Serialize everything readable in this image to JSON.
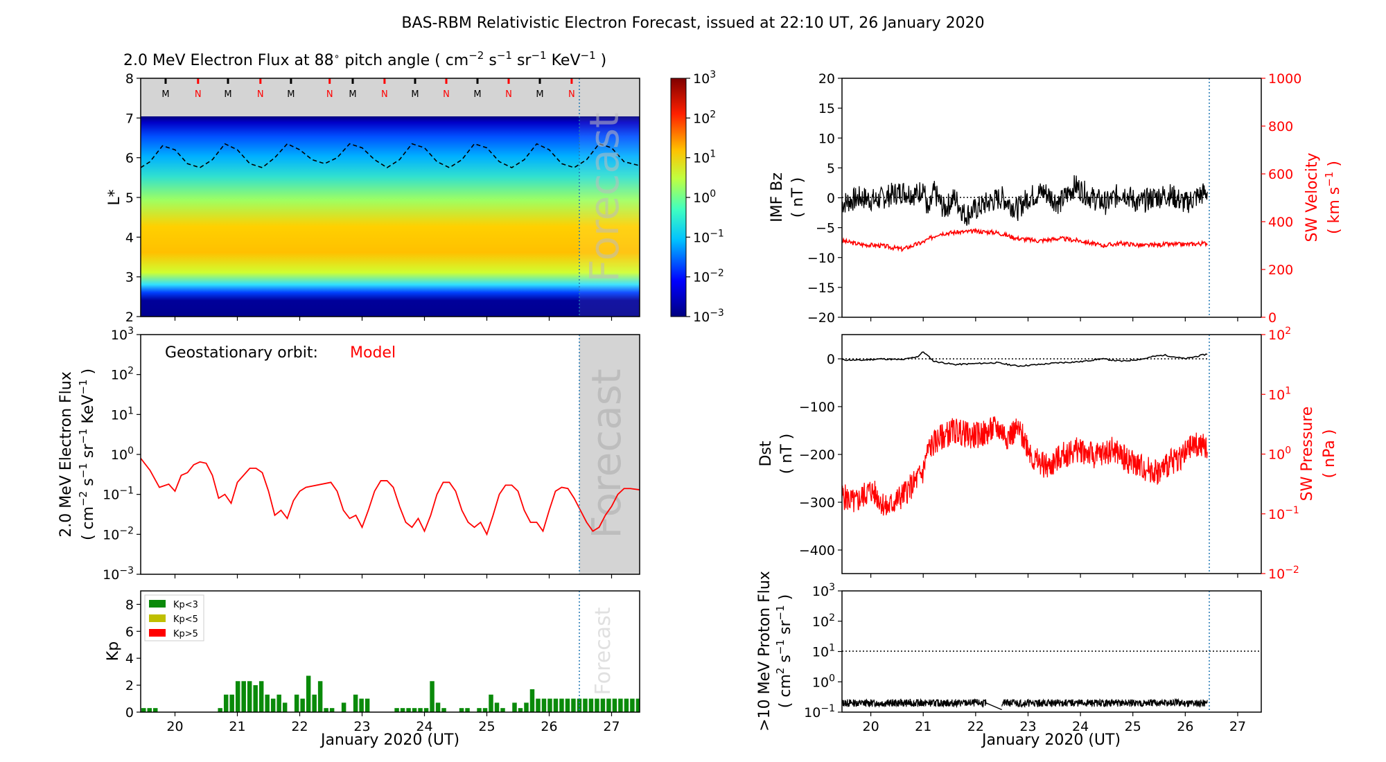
{
  "figure_title": "BAS-RBM Relativistic Electron Forecast, issued at 22:10 UT, 26 January 2020",
  "colors": {
    "red": "#ff0000",
    "green": "#0a8a0a",
    "olive": "#bfbf00",
    "black": "#000000",
    "forecast_line": "#1f77b4",
    "shade": "#d4d4d4"
  },
  "chart_data": [
    {
      "id": "heatmap",
      "type": "heatmap",
      "title": "2.0 MeV Electron Flux at 88$^\\circ$ pitch angle ( cm$^{-2}$ s$^{-1}$ sr$^{-1}$ KeV$^{-1}$ )",
      "title_text": "2.0 MeV Electron Flux at 88",
      "title_units": "pitch angle ( cm",
      "ylabel": "L*",
      "ylim": [
        2,
        8
      ],
      "yticks": [
        "2",
        "3",
        "4",
        "5",
        "6",
        "7",
        "8"
      ],
      "xlim": [
        19.45,
        27.45
      ],
      "colorbar_ticks": [
        "10",
        "10",
        "10",
        "10",
        "10",
        "10",
        "10"
      ],
      "colorbar_exps": [
        "-3",
        "-2",
        "-1",
        "0",
        "1",
        "2",
        "3"
      ],
      "forecast_label": "Forecast",
      "forecast_start": 26.42,
      "mn_markers": [
        {
          "x": 19.85,
          "label": "M",
          "color": "black"
        },
        {
          "x": 20.37,
          "label": "N",
          "color": "red"
        },
        {
          "x": 20.85,
          "label": "M",
          "color": "black"
        },
        {
          "x": 21.37,
          "label": "N",
          "color": "red"
        },
        {
          "x": 21.86,
          "label": "M",
          "color": "black"
        },
        {
          "x": 22.48,
          "label": "N",
          "color": "red"
        },
        {
          "x": 22.85,
          "label": "M",
          "color": "black"
        },
        {
          "x": 23.36,
          "label": "N",
          "color": "red"
        },
        {
          "x": 23.85,
          "label": "M",
          "color": "black"
        },
        {
          "x": 24.35,
          "label": "N",
          "color": "red"
        },
        {
          "x": 24.85,
          "label": "M",
          "color": "black"
        },
        {
          "x": 25.35,
          "label": "N",
          "color": "red"
        },
        {
          "x": 25.85,
          "label": "M",
          "color": "black"
        },
        {
          "x": 26.36,
          "label": "N",
          "color": "red"
        }
      ],
      "dashed_boundary_L": {
        "x": [
          19.45,
          19.6,
          19.8,
          20.0,
          20.2,
          20.4,
          20.6,
          20.8,
          21.0,
          21.2,
          21.4,
          21.6,
          21.8,
          22.0,
          22.2,
          22.4,
          22.6,
          22.8,
          23.0,
          23.2,
          23.4,
          23.6,
          23.8,
          24.0,
          24.2,
          24.4,
          24.6,
          24.8,
          25.0,
          25.2,
          25.4,
          25.6,
          25.8,
          26.0,
          26.2,
          26.4,
          26.6,
          26.8,
          27.0,
          27.2,
          27.45
        ],
        "y": [
          5.75,
          5.9,
          6.3,
          6.2,
          5.85,
          5.75,
          5.95,
          6.35,
          6.2,
          5.85,
          5.75,
          6.0,
          6.35,
          6.2,
          5.95,
          5.85,
          6.0,
          6.35,
          6.25,
          5.95,
          5.75,
          5.95,
          6.35,
          6.25,
          5.9,
          5.75,
          5.95,
          6.35,
          6.25,
          5.9,
          5.75,
          5.95,
          6.35,
          6.2,
          5.85,
          5.75,
          5.95,
          6.35,
          6.25,
          5.9,
          5.8
        ]
      }
    },
    {
      "id": "geo_flux",
      "type": "line",
      "ylabel": "2.0 MeV Electron Flux",
      "ylabel_units": "( cm",
      "yscale": "log",
      "ylim": [
        0.001,
        1000
      ],
      "yticks": [
        "10",
        "10",
        "10",
        "10",
        "10",
        "10",
        "10"
      ],
      "ytick_exps": [
        "-3",
        "-2",
        "-1",
        "0",
        "1",
        "2",
        "3"
      ],
      "annotation": "Geostationary orbit:",
      "annotation_model": "Model",
      "forecast_label": "Forecast",
      "series": [
        {
          "x": [
            19.45,
            19.6,
            19.75,
            19.9,
            20.0,
            20.1,
            20.2,
            20.3,
            20.4,
            20.5,
            20.6,
            20.7,
            20.8,
            20.9,
            21.0,
            21.1,
            21.2,
            21.3,
            21.4,
            21.5,
            21.6,
            21.7,
            21.8,
            21.9,
            22.0,
            22.1,
            22.5,
            22.6,
            22.7,
            22.8,
            22.9,
            23.0,
            23.1,
            23.2,
            23.3,
            23.4,
            23.5,
            23.6,
            23.7,
            23.8,
            23.9,
            24.0,
            24.1,
            24.2,
            24.3,
            24.4,
            24.5,
            24.6,
            24.7,
            24.8,
            24.9,
            25.0,
            25.1,
            25.2,
            25.3,
            25.4,
            25.5,
            25.6,
            25.7,
            25.8,
            25.9,
            26.0,
            26.1,
            26.2,
            26.3,
            26.4,
            26.5,
            26.6,
            26.7,
            26.8,
            26.9,
            27.0,
            27.1,
            27.2,
            27.3,
            27.45
          ],
          "y": [
            0.8,
            0.4,
            0.15,
            0.18,
            0.12,
            0.3,
            0.35,
            0.55,
            0.65,
            0.6,
            0.3,
            0.08,
            0.1,
            0.06,
            0.2,
            0.3,
            0.45,
            0.45,
            0.35,
            0.12,
            0.03,
            0.04,
            0.025,
            0.07,
            0.12,
            0.15,
            0.2,
            0.12,
            0.04,
            0.025,
            0.03,
            0.015,
            0.04,
            0.12,
            0.22,
            0.22,
            0.15,
            0.05,
            0.02,
            0.015,
            0.025,
            0.012,
            0.03,
            0.1,
            0.2,
            0.2,
            0.12,
            0.04,
            0.02,
            0.015,
            0.02,
            0.01,
            0.03,
            0.1,
            0.17,
            0.17,
            0.12,
            0.04,
            0.02,
            0.02,
            0.012,
            0.04,
            0.12,
            0.15,
            0.14,
            0.08,
            0.04,
            0.02,
            0.012,
            0.015,
            0.03,
            0.05,
            0.1,
            0.14,
            0.14,
            0.13
          ]
        }
      ]
    },
    {
      "id": "kp",
      "type": "bar",
      "ylabel": "Kp",
      "ylim": [
        0,
        9
      ],
      "yticks": [
        "0",
        "2",
        "4",
        "6",
        "8"
      ],
      "xlabel": "January 2020 (UT)",
      "xticks": [
        "20",
        "21",
        "22",
        "23",
        "24",
        "25",
        "26",
        "27"
      ],
      "forecast_label": "Forecast",
      "legend": [
        {
          "label": "Kp<3",
          "color": "green"
        },
        {
          "label": "Kp<5",
          "color": "olive"
        },
        {
          "label": "Kp>5",
          "color": "red"
        }
      ],
      "bars": [
        0.3,
        0.3,
        0.3,
        0,
        0,
        0,
        0,
        0,
        0,
        0,
        0,
        0,
        0,
        0.3,
        1.3,
        1.3,
        2.3,
        2.3,
        2.3,
        2.0,
        2.3,
        1.3,
        1.0,
        1.3,
        0.7,
        0,
        1.3,
        1.0,
        2.7,
        1.3,
        2.3,
        0.3,
        0.3,
        0,
        0.7,
        0,
        1.3,
        1.0,
        1.0,
        0,
        0,
        0,
        0,
        0.3,
        0.3,
        0.3,
        0.3,
        0.3,
        0.3,
        2.3,
        0.7,
        0.3,
        0,
        0,
        0.3,
        0.3,
        0,
        0.3,
        0.3,
        1.3,
        0.7,
        0.3,
        0,
        0.7,
        0.3,
        0.7,
        1.7,
        1.0,
        1.0,
        1.0,
        1.0,
        1.0,
        1.0,
        1.0,
        1.0,
        1.0,
        1.0,
        1.0,
        1.0,
        1.0,
        1.0,
        1.0,
        1.0,
        1.0,
        1.0
      ],
      "bar_start": 19.45,
      "bar_step": 0.0944
    },
    {
      "id": "imf",
      "type": "line",
      "ylabel": "IMF Bz",
      "ylabel_units": "( nT )",
      "ylim": [
        -20,
        20
      ],
      "yticks": [
        "20",
        "15",
        "10",
        "5",
        "0",
        "−5",
        "−10",
        "−15",
        "−20"
      ],
      "y2label": "SW Velocity",
      "y2label_units": "( km s",
      "y2lim": [
        0,
        1000
      ],
      "y2ticks": [
        "1000",
        "800",
        "600",
        "400",
        "200",
        "0"
      ],
      "series": [
        {
          "name": "Bz",
          "color": "black",
          "x": [
            19.45,
            19.8,
            20.1,
            20.4,
            20.6,
            20.9,
            21.0,
            21.1,
            21.2,
            21.4,
            21.6,
            21.8,
            22.0,
            22.2,
            22.5,
            22.8,
            23.0,
            23.3,
            23.6,
            23.9,
            24.2,
            24.5,
            24.8,
            25.1,
            25.4,
            25.7,
            26.0,
            26.2,
            26.42
          ],
          "y": [
            -1,
            0,
            -0.5,
            0.5,
            1,
            0.5,
            2,
            -3,
            1,
            -2,
            0,
            -3,
            -2,
            -1,
            0,
            -2,
            0,
            1,
            -1,
            2,
            0,
            -1,
            1,
            -1,
            0,
            0.5,
            -1,
            0,
            1
          ]
        },
        {
          "name": "Vsw",
          "color": "red",
          "x": [
            19.45,
            19.8,
            20.2,
            20.6,
            21.0,
            21.3,
            21.6,
            22.0,
            22.4,
            22.8,
            23.2,
            23.6,
            24.0,
            24.4,
            24.8,
            25.2,
            25.6,
            26.0,
            26.42
          ],
          "y": [
            320,
            305,
            300,
            285,
            315,
            350,
            355,
            360,
            355,
            330,
            320,
            330,
            320,
            300,
            310,
            300,
            305,
            305,
            310
          ]
        }
      ]
    },
    {
      "id": "dst",
      "type": "line",
      "ylabel": "Dst",
      "ylabel_units": "( nT )",
      "ylim": [
        -450,
        50
      ],
      "yticks": [
        "0",
        "−100",
        "−200",
        "−300",
        "−400"
      ],
      "y2label": "SW Pressure",
      "y2label_units": "( nPa )",
      "y2scale": "log",
      "y2lim": [
        0.01,
        100
      ],
      "y2ticks": [
        "10",
        "10",
        "10",
        "10",
        "10"
      ],
      "y2tick_exps": [
        "2",
        "1",
        "0",
        "-1",
        "-2"
      ],
      "series": [
        {
          "name": "Dst",
          "color": "black",
          "x": [
            19.45,
            19.8,
            20.2,
            20.6,
            20.9,
            21.0,
            21.2,
            21.6,
            22.0,
            22.4,
            22.8,
            23.2,
            23.6,
            24.0,
            24.4,
            24.8,
            25.2,
            25.4,
            25.6,
            26.0,
            26.42
          ],
          "y": [
            -2,
            -3,
            0,
            -2,
            5,
            15,
            -5,
            -12,
            -10,
            -8,
            -15,
            -12,
            -8,
            -6,
            0,
            -5,
            0,
            5,
            8,
            0,
            10
          ]
        },
        {
          "name": "Psw",
          "color": "red",
          "x": [
            19.45,
            19.7,
            20.0,
            20.3,
            20.6,
            20.8,
            21.0,
            21.1,
            21.3,
            21.6,
            21.9,
            22.2,
            22.4,
            22.6,
            22.8,
            23.1,
            23.4,
            23.7,
            24.0,
            24.3,
            24.6,
            24.9,
            25.2,
            25.5,
            25.8,
            26.0,
            26.2,
            26.42
          ],
          "y": [
            0.2,
            0.15,
            0.25,
            0.12,
            0.2,
            0.3,
            0.5,
            1.2,
            1.8,
            2.5,
            2.0,
            2.2,
            2.8,
            2.0,
            2.5,
            0.8,
            0.6,
            1.0,
            1.2,
            0.9,
            1.2,
            0.8,
            0.6,
            0.5,
            0.8,
            1.0,
            1.5,
            1.2
          ]
        }
      ]
    },
    {
      "id": "proton",
      "type": "line",
      "ylabel": ">10 MeV Proton Flux",
      "ylabel_units": "( cm",
      "yscale": "log",
      "ylim": [
        0.1,
        1000
      ],
      "yticks": [
        "10",
        "10",
        "10",
        "10",
        "10"
      ],
      "ytick_exps": [
        "-1",
        "0",
        "1",
        "2",
        "3"
      ],
      "xlabel": "January 2020 (UT)",
      "xticks": [
        "20",
        "21",
        "22",
        "23",
        "24",
        "25",
        "26",
        "27"
      ],
      "threshold": 10,
      "series": [
        {
          "name": "proton",
          "color": "black",
          "x": [
            19.45,
            22.2,
            22.5,
            26.42
          ],
          "y": [
            0.2,
            0.2,
            0.12,
            0.2
          ]
        }
      ]
    }
  ]
}
